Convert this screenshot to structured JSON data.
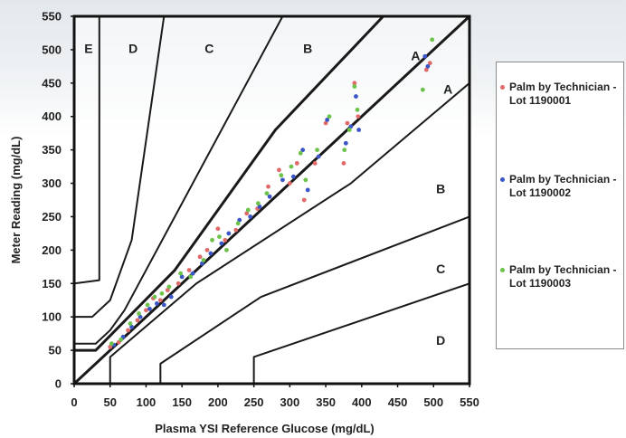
{
  "chart_data": {
    "type": "scatter",
    "title": "",
    "xlabel": "Plasma YSI Reference Glucose (mg/dL)",
    "ylabel": "Meter Reading (mg/dL)",
    "xlim": [
      0,
      550
    ],
    "ylim": [
      0,
      550
    ],
    "x_ticks": [
      "0",
      "50",
      "100",
      "150",
      "200",
      "250",
      "300",
      "350",
      "400",
      "450",
      "500",
      "550"
    ],
    "y_ticks": [
      "0",
      "50",
      "100",
      "150",
      "200",
      "250",
      "300",
      "350",
      "400",
      "450",
      "500",
      "550"
    ],
    "grid": false,
    "legend_position": "right",
    "zone_labels": [
      {
        "label": "E",
        "x": 20,
        "y": 495
      },
      {
        "label": "D",
        "x": 82,
        "y": 495
      },
      {
        "label": "C",
        "x": 188,
        "y": 495
      },
      {
        "label": "B",
        "x": 325,
        "y": 495
      },
      {
        "label": "A",
        "x": 475,
        "y": 484
      },
      {
        "label": "A",
        "x": 520,
        "y": 434
      },
      {
        "label": "B",
        "x": 510,
        "y": 285
      },
      {
        "label": "C",
        "x": 510,
        "y": 165
      },
      {
        "label": "D",
        "x": 510,
        "y": 58
      }
    ],
    "zone_boundaries": [
      {
        "weight": "thick",
        "points": [
          [
            0,
            0
          ],
          [
            550,
            550
          ]
        ]
      },
      {
        "weight": "thin",
        "points": [
          [
            50,
            0
          ],
          [
            50,
            40
          ],
          [
            170,
            150
          ],
          [
            385,
            300
          ],
          [
            550,
            450
          ]
        ]
      },
      {
        "weight": "thin",
        "points": [
          [
            120,
            0
          ],
          [
            120,
            30
          ],
          [
            260,
            130
          ],
          [
            550,
            250
          ]
        ]
      },
      {
        "weight": "thin",
        "points": [
          [
            250,
            0
          ],
          [
            250,
            40
          ],
          [
            550,
            150
          ]
        ]
      },
      {
        "weight": "thick",
        "points": [
          [
            0,
            50
          ],
          [
            30,
            50
          ],
          [
            140,
            170
          ],
          [
            280,
            380
          ],
          [
            430,
            550
          ]
        ]
      },
      {
        "weight": "thin",
        "points": [
          [
            0,
            60
          ],
          [
            30,
            60
          ],
          [
            50,
            80
          ],
          [
            70,
            110
          ],
          [
            290,
            550
          ]
        ]
      },
      {
        "weight": "thin",
        "points": [
          [
            0,
            100
          ],
          [
            25,
            100
          ],
          [
            50,
            125
          ],
          [
            80,
            215
          ],
          [
            125,
            550
          ]
        ]
      },
      {
        "weight": "thin",
        "points": [
          [
            0,
            150
          ],
          [
            35,
            155
          ],
          [
            35,
            550
          ]
        ]
      }
    ],
    "series": [
      {
        "name": "Palm by Technician - Lot 1190001",
        "color": "#e06a6a",
        "points": [
          [
            50,
            55
          ],
          [
            62,
            62
          ],
          [
            75,
            80
          ],
          [
            88,
            95
          ],
          [
            100,
            110
          ],
          [
            110,
            128
          ],
          [
            120,
            125
          ],
          [
            130,
            140
          ],
          [
            145,
            150
          ],
          [
            160,
            170
          ],
          [
            175,
            190
          ],
          [
            185,
            200
          ],
          [
            200,
            232
          ],
          [
            210,
            215
          ],
          [
            225,
            230
          ],
          [
            240,
            255
          ],
          [
            255,
            262
          ],
          [
            270,
            295
          ],
          [
            285,
            320
          ],
          [
            300,
            300
          ],
          [
            310,
            330
          ],
          [
            320,
            275
          ],
          [
            335,
            330
          ],
          [
            350,
            390
          ],
          [
            375,
            330
          ],
          [
            380,
            390
          ],
          [
            390,
            450
          ],
          [
            395,
            400
          ],
          [
            490,
            470
          ],
          [
            495,
            480
          ]
        ]
      },
      {
        "name": "Palm by Technician - Lot 1190002",
        "color": "#3a55c8",
        "points": [
          [
            55,
            58
          ],
          [
            68,
            70
          ],
          [
            80,
            85
          ],
          [
            92,
            100
          ],
          [
            105,
            112
          ],
          [
            115,
            120
          ],
          [
            125,
            118
          ],
          [
            135,
            130
          ],
          [
            150,
            160
          ],
          [
            165,
            165
          ],
          [
            178,
            180
          ],
          [
            190,
            195
          ],
          [
            205,
            210
          ],
          [
            215,
            225
          ],
          [
            230,
            245
          ],
          [
            245,
            250
          ],
          [
            258,
            265
          ],
          [
            272,
            280
          ],
          [
            290,
            305
          ],
          [
            305,
            310
          ],
          [
            318,
            350
          ],
          [
            325,
            290
          ],
          [
            340,
            340
          ],
          [
            352,
            395
          ],
          [
            378,
            360
          ],
          [
            385,
            385
          ],
          [
            392,
            430
          ],
          [
            396,
            380
          ],
          [
            488,
            490
          ],
          [
            492,
            475
          ]
        ]
      },
      {
        "name": "Palm by Technician - Lot 1190003",
        "color": "#6cc24a",
        "points": [
          [
            52,
            60
          ],
          [
            65,
            66
          ],
          [
            78,
            90
          ],
          [
            90,
            105
          ],
          [
            102,
            118
          ],
          [
            112,
            130
          ],
          [
            122,
            135
          ],
          [
            132,
            145
          ],
          [
            148,
            165
          ],
          [
            162,
            160
          ],
          [
            180,
            185
          ],
          [
            192,
            215
          ],
          [
            202,
            220
          ],
          [
            212,
            200
          ],
          [
            228,
            240
          ],
          [
            242,
            260
          ],
          [
            256,
            270
          ],
          [
            268,
            285
          ],
          [
            288,
            312
          ],
          [
            302,
            325
          ],
          [
            315,
            345
          ],
          [
            322,
            305
          ],
          [
            338,
            350
          ],
          [
            355,
            400
          ],
          [
            376,
            350
          ],
          [
            383,
            380
          ],
          [
            390,
            445
          ],
          [
            394,
            410
          ],
          [
            485,
            440
          ],
          [
            498,
            515
          ]
        ]
      }
    ]
  },
  "legend": [
    {
      "label": "Palm by Technician - Lot 1190001",
      "color": "#e06a6a"
    },
    {
      "label": "Palm by Technician - Lot 1190002",
      "color": "#3a55c8"
    },
    {
      "label": "Palm by Technician - Lot 1190003",
      "color": "#6cc24a"
    }
  ]
}
